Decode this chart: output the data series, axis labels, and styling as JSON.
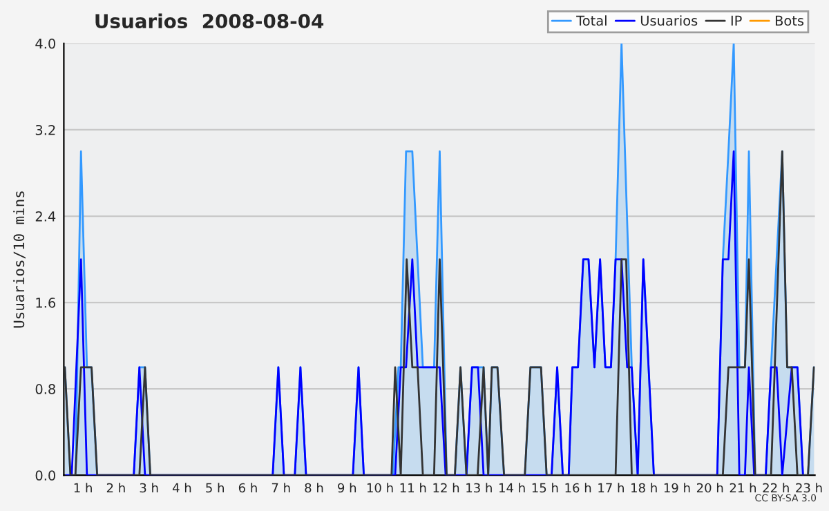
{
  "chart_data": {
    "type": "line",
    "title": "Usuarios  2008-08-04",
    "ylabel": "Usuarios/10 mins",
    "annotations": [
      "CC BY-SA 3.0"
    ],
    "xlim": [
      0.42,
      23.18
    ],
    "ylim": [
      0,
      4
    ],
    "xticks": [
      {
        "value": 1,
        "label": "1 h"
      },
      {
        "value": 2,
        "label": "2 h"
      },
      {
        "value": 3,
        "label": "3 h"
      },
      {
        "value": 4,
        "label": "4 h"
      },
      {
        "value": 5,
        "label": "5 h"
      },
      {
        "value": 6,
        "label": "6 h"
      },
      {
        "value": 7,
        "label": "7 h"
      },
      {
        "value": 8,
        "label": "8 h"
      },
      {
        "value": 9,
        "label": "9 h"
      },
      {
        "value": 10,
        "label": "10 h"
      },
      {
        "value": 11,
        "label": "11 h"
      },
      {
        "value": 12,
        "label": "12 h"
      },
      {
        "value": 13,
        "label": "13 h"
      },
      {
        "value": 14,
        "label": "14 h"
      },
      {
        "value": 15,
        "label": "15 h"
      },
      {
        "value": 16,
        "label": "16 h"
      },
      {
        "value": 17,
        "label": "17 h"
      },
      {
        "value": 18,
        "label": "18 h"
      },
      {
        "value": 19,
        "label": "19 h"
      },
      {
        "value": 20,
        "label": "20 h"
      },
      {
        "value": 21,
        "label": "21 h"
      },
      {
        "value": 22,
        "label": "22 h"
      },
      {
        "value": 23,
        "label": "23 h"
      }
    ],
    "yticks": [
      {
        "value": 0,
        "label": "0.0"
      },
      {
        "value": 0.8,
        "label": "0.8"
      },
      {
        "value": 1.6,
        "label": "1.6"
      },
      {
        "value": 2.4,
        "label": "2.4"
      },
      {
        "value": 3.2,
        "label": "3.2"
      },
      {
        "value": 4,
        "label": "4.0"
      }
    ],
    "grid": "y",
    "legend": "top right",
    "marker": "none",
    "line_style": "solid",
    "series": [
      {
        "name": "Total",
        "type": "area",
        "color": "#3399ff",
        "x": [
          0.45,
          0.62,
          0.77,
          0.94,
          1.12,
          1.26,
          1.43,
          2.54,
          2.71,
          2.88,
          3.04,
          6.75,
          6.92,
          7.09,
          7.42,
          7.59,
          7.76,
          9.18,
          9.35,
          9.51,
          10.39,
          10.56,
          10.63,
          10.79,
          10.98,
          11.3,
          11.64,
          11.81,
          12.02,
          12.27,
          12.44,
          12.62,
          12.79,
          13.14,
          13.28,
          13.39,
          13.56,
          13.76,
          14.39,
          14.56,
          14.88,
          15.05,
          15.2,
          15.37,
          15.54,
          15.72,
          15.83,
          16.0,
          16.16,
          16.32,
          16.5,
          16.67,
          16.83,
          17.0,
          17.14,
          17.32,
          17.63,
          17.81,
          17.98,
          18.3,
          20.22,
          20.39,
          20.56,
          20.72,
          20.89,
          21.06,
          21.18,
          21.37,
          21.69,
          21.85,
          22.02,
          22.19,
          22.34,
          22.65,
          22.82,
          22.97,
          23.15
        ],
        "values": [
          1,
          0,
          0,
          3,
          1,
          1,
          0,
          0,
          1,
          1,
          0,
          0,
          1,
          0,
          0,
          1,
          0,
          0,
          1,
          0,
          0,
          1,
          1,
          3,
          3,
          1,
          1,
          3,
          0,
          0,
          1,
          0,
          1,
          1,
          0,
          1,
          1,
          0,
          0,
          1,
          1,
          0,
          0,
          1,
          0,
          0,
          1,
          1,
          2,
          2,
          1,
          2,
          1,
          1,
          2,
          4,
          1,
          0,
          2,
          0,
          0,
          2,
          3,
          4,
          1,
          1,
          3,
          0,
          0,
          1,
          2,
          3,
          1,
          1,
          0,
          0,
          1
        ]
      },
      {
        "name": "Usuarios",
        "color": "#0000ff",
        "x": [
          0.49,
          0.66,
          0.94,
          1.12,
          2.54,
          2.71,
          2.88,
          6.75,
          6.92,
          7.09,
          7.42,
          7.59,
          7.76,
          9.18,
          9.35,
          9.51,
          10.46,
          10.63,
          10.79,
          10.98,
          11.14,
          11.64,
          11.81,
          11.99,
          12.62,
          12.79,
          12.97,
          13.14,
          14.88,
          15.2,
          15.37,
          15.54,
          15.72,
          15.83,
          16.0,
          16.16,
          16.32,
          16.5,
          16.67,
          16.83,
          17.0,
          17.14,
          17.32,
          17.49,
          17.63,
          17.81,
          17.98,
          18.3,
          20.22,
          20.39,
          20.56,
          20.72,
          20.89,
          21.06,
          21.18,
          21.34,
          21.69,
          21.85,
          22.02,
          22.19,
          22.48,
          22.65,
          22.82
        ],
        "values": [
          0,
          0,
          2,
          0,
          0,
          1,
          0,
          0,
          1,
          0,
          0,
          1,
          0,
          0,
          1,
          0,
          0,
          1,
          1,
          2,
          1,
          1,
          1,
          0,
          0,
          1,
          1,
          0,
          0,
          0,
          1,
          0,
          0,
          1,
          1,
          2,
          2,
          1,
          2,
          1,
          1,
          2,
          2,
          1,
          1,
          0,
          2,
          0,
          0,
          2,
          2,
          3,
          0,
          0,
          1,
          0,
          0,
          1,
          1,
          0,
          1,
          1,
          0
        ]
      },
      {
        "name": "IP",
        "color": "#333333",
        "x": [
          0.45,
          0.62,
          0.77,
          0.94,
          1.26,
          1.43,
          2.71,
          2.88,
          3.04,
          10.35,
          10.46,
          10.63,
          10.81,
          10.98,
          11.14,
          11.3,
          11.64,
          11.81,
          12.02,
          12.27,
          12.44,
          12.62,
          12.96,
          13.14,
          13.28,
          13.39,
          13.56,
          13.76,
          14.39,
          14.56,
          14.88,
          15.05,
          17.14,
          17.32,
          17.46,
          17.63,
          20.39,
          20.56,
          21.06,
          21.18,
          21.37,
          21.85,
          22.19,
          22.34,
          22.48,
          22.65,
          22.97,
          23.15
        ],
        "values": [
          1,
          0,
          0,
          1,
          1,
          0,
          0,
          1,
          0,
          0,
          1,
          0,
          2,
          1,
          1,
          0,
          0,
          2,
          0,
          0,
          1,
          0,
          0,
          1,
          0,
          1,
          1,
          0,
          0,
          1,
          1,
          0,
          0,
          2,
          2,
          0,
          0,
          1,
          1,
          2,
          0,
          0,
          3,
          1,
          1,
          0,
          0,
          1
        ]
      },
      {
        "name": "Bots",
        "color": "#ff9900"
      }
    ]
  }
}
